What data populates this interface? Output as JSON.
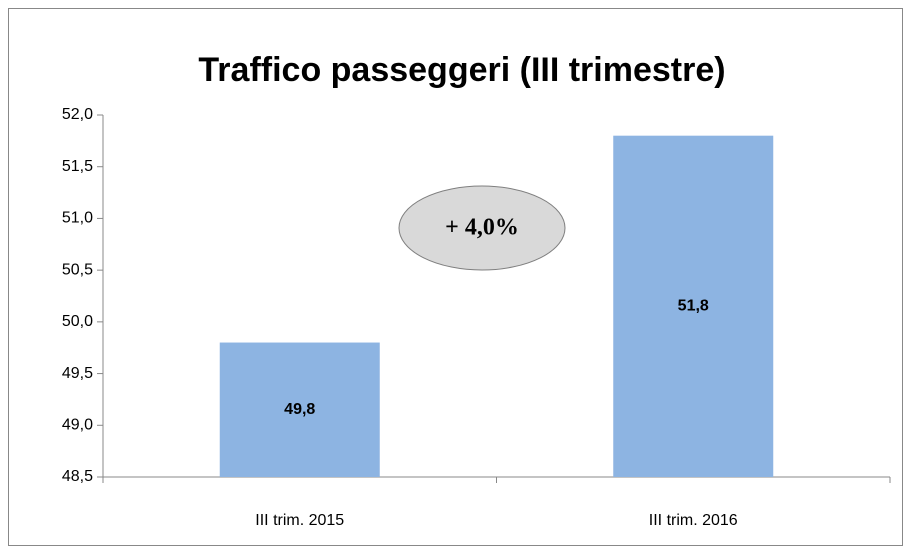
{
  "chart_data": {
    "type": "bar",
    "title": "Traffico passeggeri (III trimestre)",
    "categories": [
      "III trim. 2015",
      "III trim. 2016"
    ],
    "values": [
      49.8,
      51.8
    ],
    "value_labels": [
      "49,8",
      "51,8"
    ],
    "color": "#8db4e2",
    "ylim": [
      48.5,
      52
    ],
    "yticks": [
      {
        "value": 48.5,
        "label": "48,5"
      },
      {
        "value": 49,
        "label": "49,0"
      },
      {
        "value": 49.5,
        "label": "49,5"
      },
      {
        "value": 50,
        "label": "50,0"
      },
      {
        "value": 50.5,
        "label": "50,5"
      },
      {
        "value": 51,
        "label": "51,0"
      },
      {
        "value": 51.5,
        "label": "51,5"
      },
      {
        "value": 52,
        "label": "52,0"
      }
    ],
    "annotation": "+ 4,0%",
    "grid": false
  }
}
